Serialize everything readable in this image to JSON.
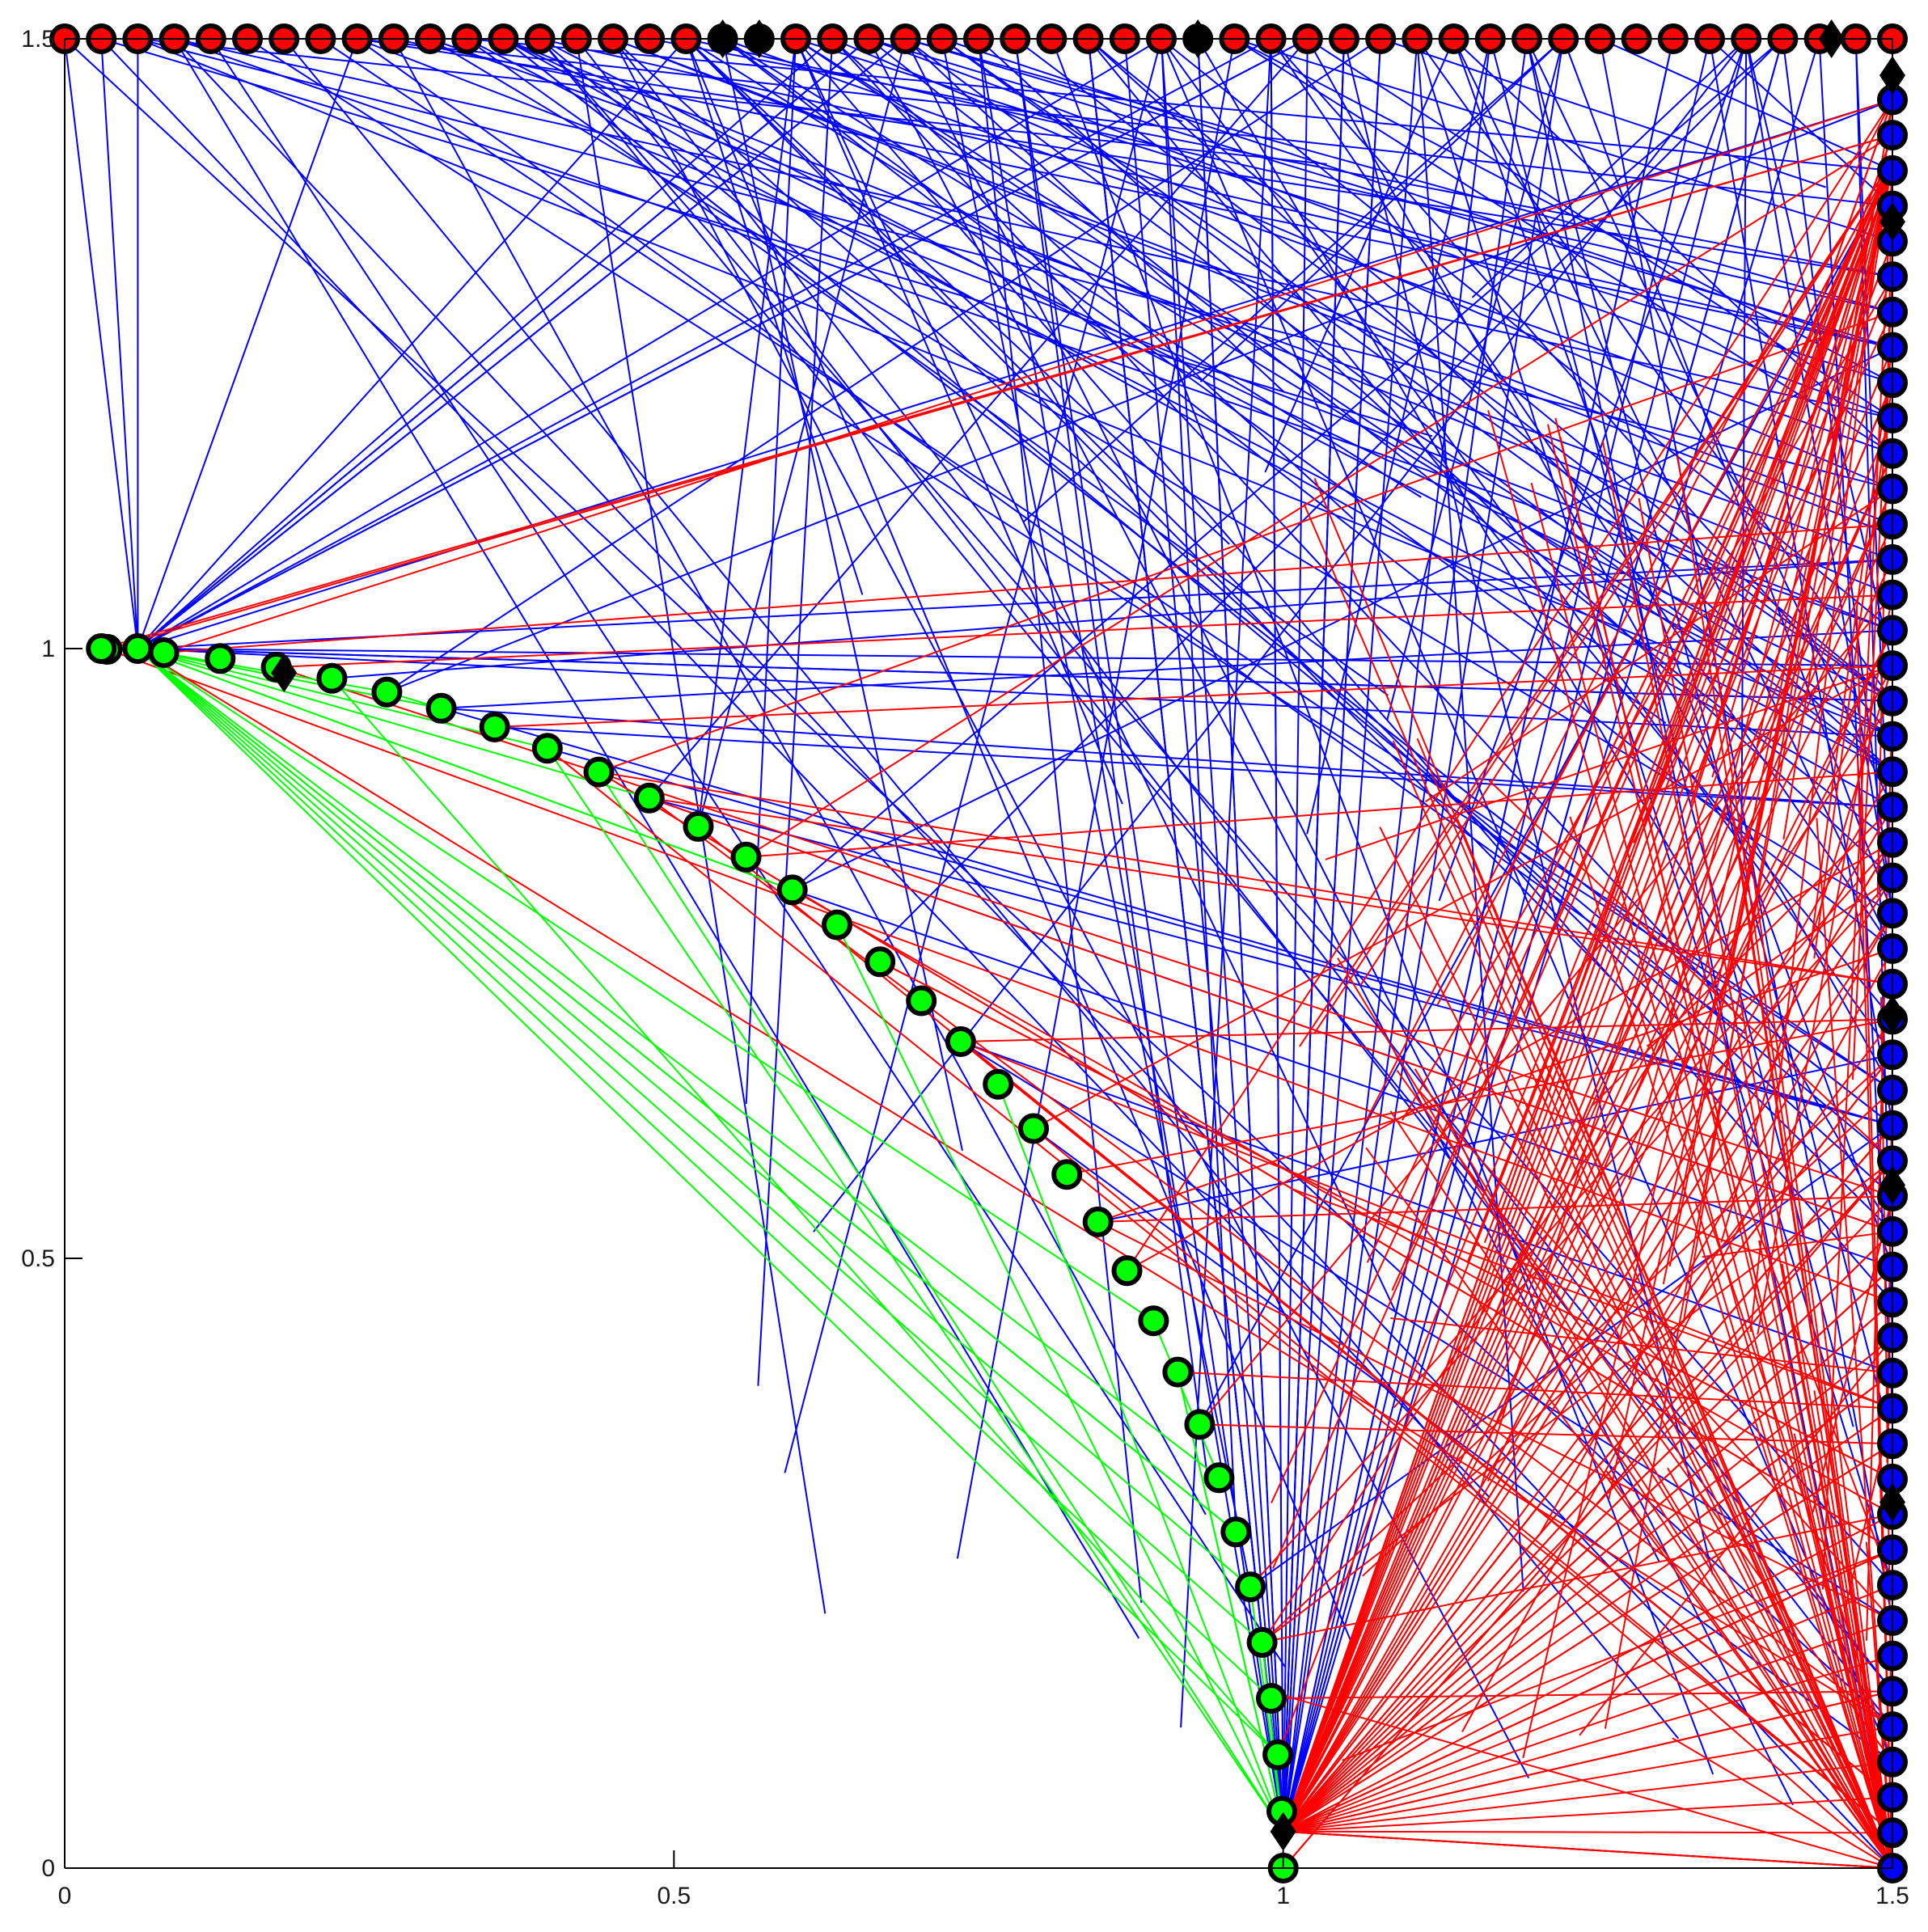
{
  "chart_data": {
    "type": "scatter",
    "title": "",
    "xlabel": "",
    "ylabel": "",
    "xlim": [
      0,
      1.5
    ],
    "ylim": [
      0,
      1.5
    ],
    "grid": false,
    "x_ticks": [
      0,
      0.5,
      1,
      1.5
    ],
    "y_ticks": [
      0,
      0.5,
      1,
      1.5
    ],
    "x_tick_labels": [
      "0",
      "0.5",
      "1",
      "1.5"
    ],
    "y_tick_labels": [
      "0",
      "0.5",
      "1",
      "1.5"
    ],
    "colors": {
      "red": "#ff0000",
      "blue": "#0000ff",
      "green": "#00ff00",
      "marker_edge": "#000000",
      "diamond": "#000000",
      "axes": "#000000"
    },
    "node_groups": [
      {
        "name": "top-edge",
        "fill": "red",
        "y": 1.5,
        "x_from": 0.0,
        "x_to": 1.5,
        "count": 51
      },
      {
        "name": "right-edge",
        "fill": "blue",
        "x": 1.5,
        "y_from": 0.0,
        "y_to": 1.45,
        "count": 51
      },
      {
        "name": "quarter-arc",
        "fill": "green",
        "center": [
          0,
          0
        ],
        "radius": 1.0,
        "angle_from_deg": 0,
        "angle_to_deg": 88,
        "count": 34
      },
      {
        "name": "diamonds",
        "fill": "black",
        "marker": "diamond",
        "points": [
          [
            1.0,
            0.03
          ],
          [
            0.18,
            0.98
          ],
          [
            0.54,
            1.5
          ],
          [
            0.57,
            1.5
          ],
          [
            0.93,
            1.5
          ],
          [
            1.45,
            1.5
          ],
          [
            1.5,
            1.47
          ],
          [
            1.5,
            1.35
          ],
          [
            1.5,
            0.7
          ],
          [
            1.5,
            0.56
          ],
          [
            1.5,
            0.3
          ]
        ]
      }
    ],
    "edge_groups": [
      {
        "color": "blue",
        "description": "top-edge / right-edge to upper region",
        "count": 260
      },
      {
        "color": "red",
        "description": "arc and hub (1, 0.03) to right edge",
        "count": 230
      },
      {
        "color": "green",
        "description": "arc start (0.06, 1.0) to arc and hub",
        "count": 26
      }
    ],
    "hubs": [
      [
        1.0,
        0.03
      ],
      [
        1.5,
        0.0
      ],
      [
        0.06,
        1.0
      ],
      [
        1.5,
        1.4
      ]
    ]
  }
}
